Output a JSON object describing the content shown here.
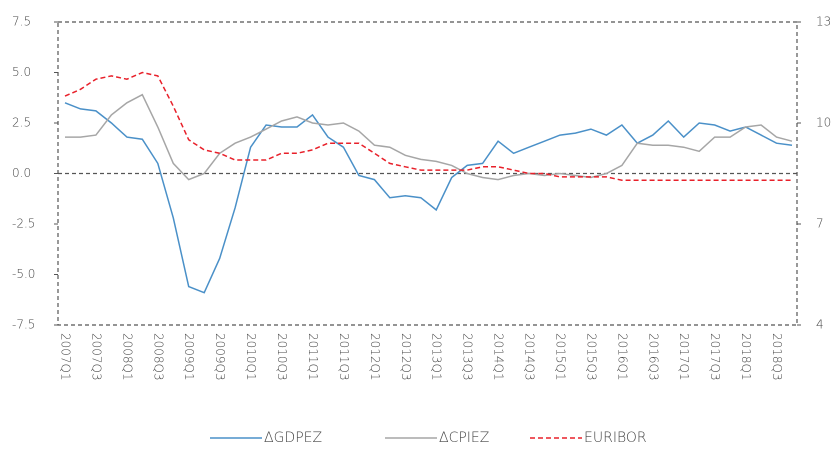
{
  "chart_data": {
    "type": "line",
    "categories": [
      "2007Q1",
      null,
      "2007Q3",
      null,
      "2008Q1",
      null,
      "2008Q3",
      null,
      "2009Q1",
      null,
      "2009Q3",
      null,
      "2010Q1",
      null,
      "2010Q3",
      null,
      "2011Q1",
      null,
      "2011Q3",
      null,
      "2012Q1",
      null,
      "2012Q3",
      null,
      "2013Q1",
      null,
      "2013Q3",
      null,
      "2014Q1",
      null,
      "2014Q3",
      null,
      "2015Q1",
      null,
      "2015Q3",
      null,
      "2016Q1",
      null,
      "2016Q3",
      null,
      "2017Q1",
      null,
      "2017Q3",
      null,
      "2018Q1",
      null,
      "2018Q3",
      null
    ],
    "series": [
      {
        "name": "ΔGDPEZ",
        "color": "#4a90c8",
        "linestyle": "solid",
        "values": [
          3.5,
          3.2,
          3.1,
          2.5,
          1.8,
          1.7,
          0.5,
          -2.2,
          -5.6,
          -5.9,
          -4.2,
          -1.7,
          1.3,
          2.4,
          2.3,
          2.3,
          2.9,
          1.8,
          1.3,
          -0.1,
          -0.3,
          -1.2,
          -1.1,
          -1.2,
          -1.8,
          -0.2,
          0.4,
          0.5,
          1.6,
          1.0,
          1.3,
          1.6,
          1.9,
          2.0,
          2.2,
          1.9,
          2.4,
          1.5,
          1.9,
          2.6,
          1.8,
          2.5,
          2.4,
          2.1,
          2.3,
          1.9,
          1.5,
          1.4
        ]
      },
      {
        "name": "ΔCPIEZ",
        "color": "#a6a6a6",
        "linestyle": "solid",
        "values": [
          1.8,
          1.8,
          1.9,
          2.9,
          3.5,
          3.9,
          2.3,
          0.5,
          -0.3,
          0.0,
          1.0,
          1.5,
          1.8,
          2.2,
          2.6,
          2.8,
          2.5,
          2.4,
          2.5,
          2.1,
          1.4,
          1.3,
          0.9,
          0.7,
          0.6,
          0.4,
          0.0,
          -0.2,
          -0.3,
          -0.1,
          0.0,
          -0.1,
          0.0,
          -0.1,
          -0.2,
          0.0,
          0.4,
          1.5,
          1.4,
          1.4,
          1.3,
          1.1,
          1.8,
          1.8,
          2.3,
          2.4,
          1.8,
          1.6
        ]
      },
      {
        "name": "EURIBOR",
        "color": "#e8202a",
        "linestyle": "dashed",
        "axis": "y2",
        "values": [
          10.8,
          11.0,
          11.3,
          11.4,
          11.3,
          11.5,
          11.4,
          10.5,
          9.5,
          9.2,
          9.1,
          8.9,
          8.9,
          8.9,
          9.1,
          9.1,
          9.2,
          9.4,
          9.4,
          9.4,
          9.1,
          8.8,
          8.7,
          8.6,
          8.6,
          8.6,
          8.6,
          8.7,
          8.7,
          8.6,
          8.5,
          8.5,
          8.4,
          8.4,
          8.4,
          8.4,
          8.3,
          8.3,
          8.3,
          8.3,
          8.3,
          8.3,
          8.3,
          8.3,
          8.3,
          8.3,
          8.3,
          8.3
        ]
      }
    ],
    "ylim": [
      -7.5,
      7.5
    ],
    "yticks": [
      -7.5,
      {
        "value": -5,
        "label": "-5.0"
      },
      -2.5,
      {
        "value": 0,
        "label": "0.0"
      },
      2.5,
      {
        "value": 5,
        "label": "5.0"
      },
      7.5
    ],
    "y2lim": [
      4,
      13
    ],
    "y2ticks": [
      4,
      7,
      10,
      13
    ],
    "legend": "bottom"
  }
}
